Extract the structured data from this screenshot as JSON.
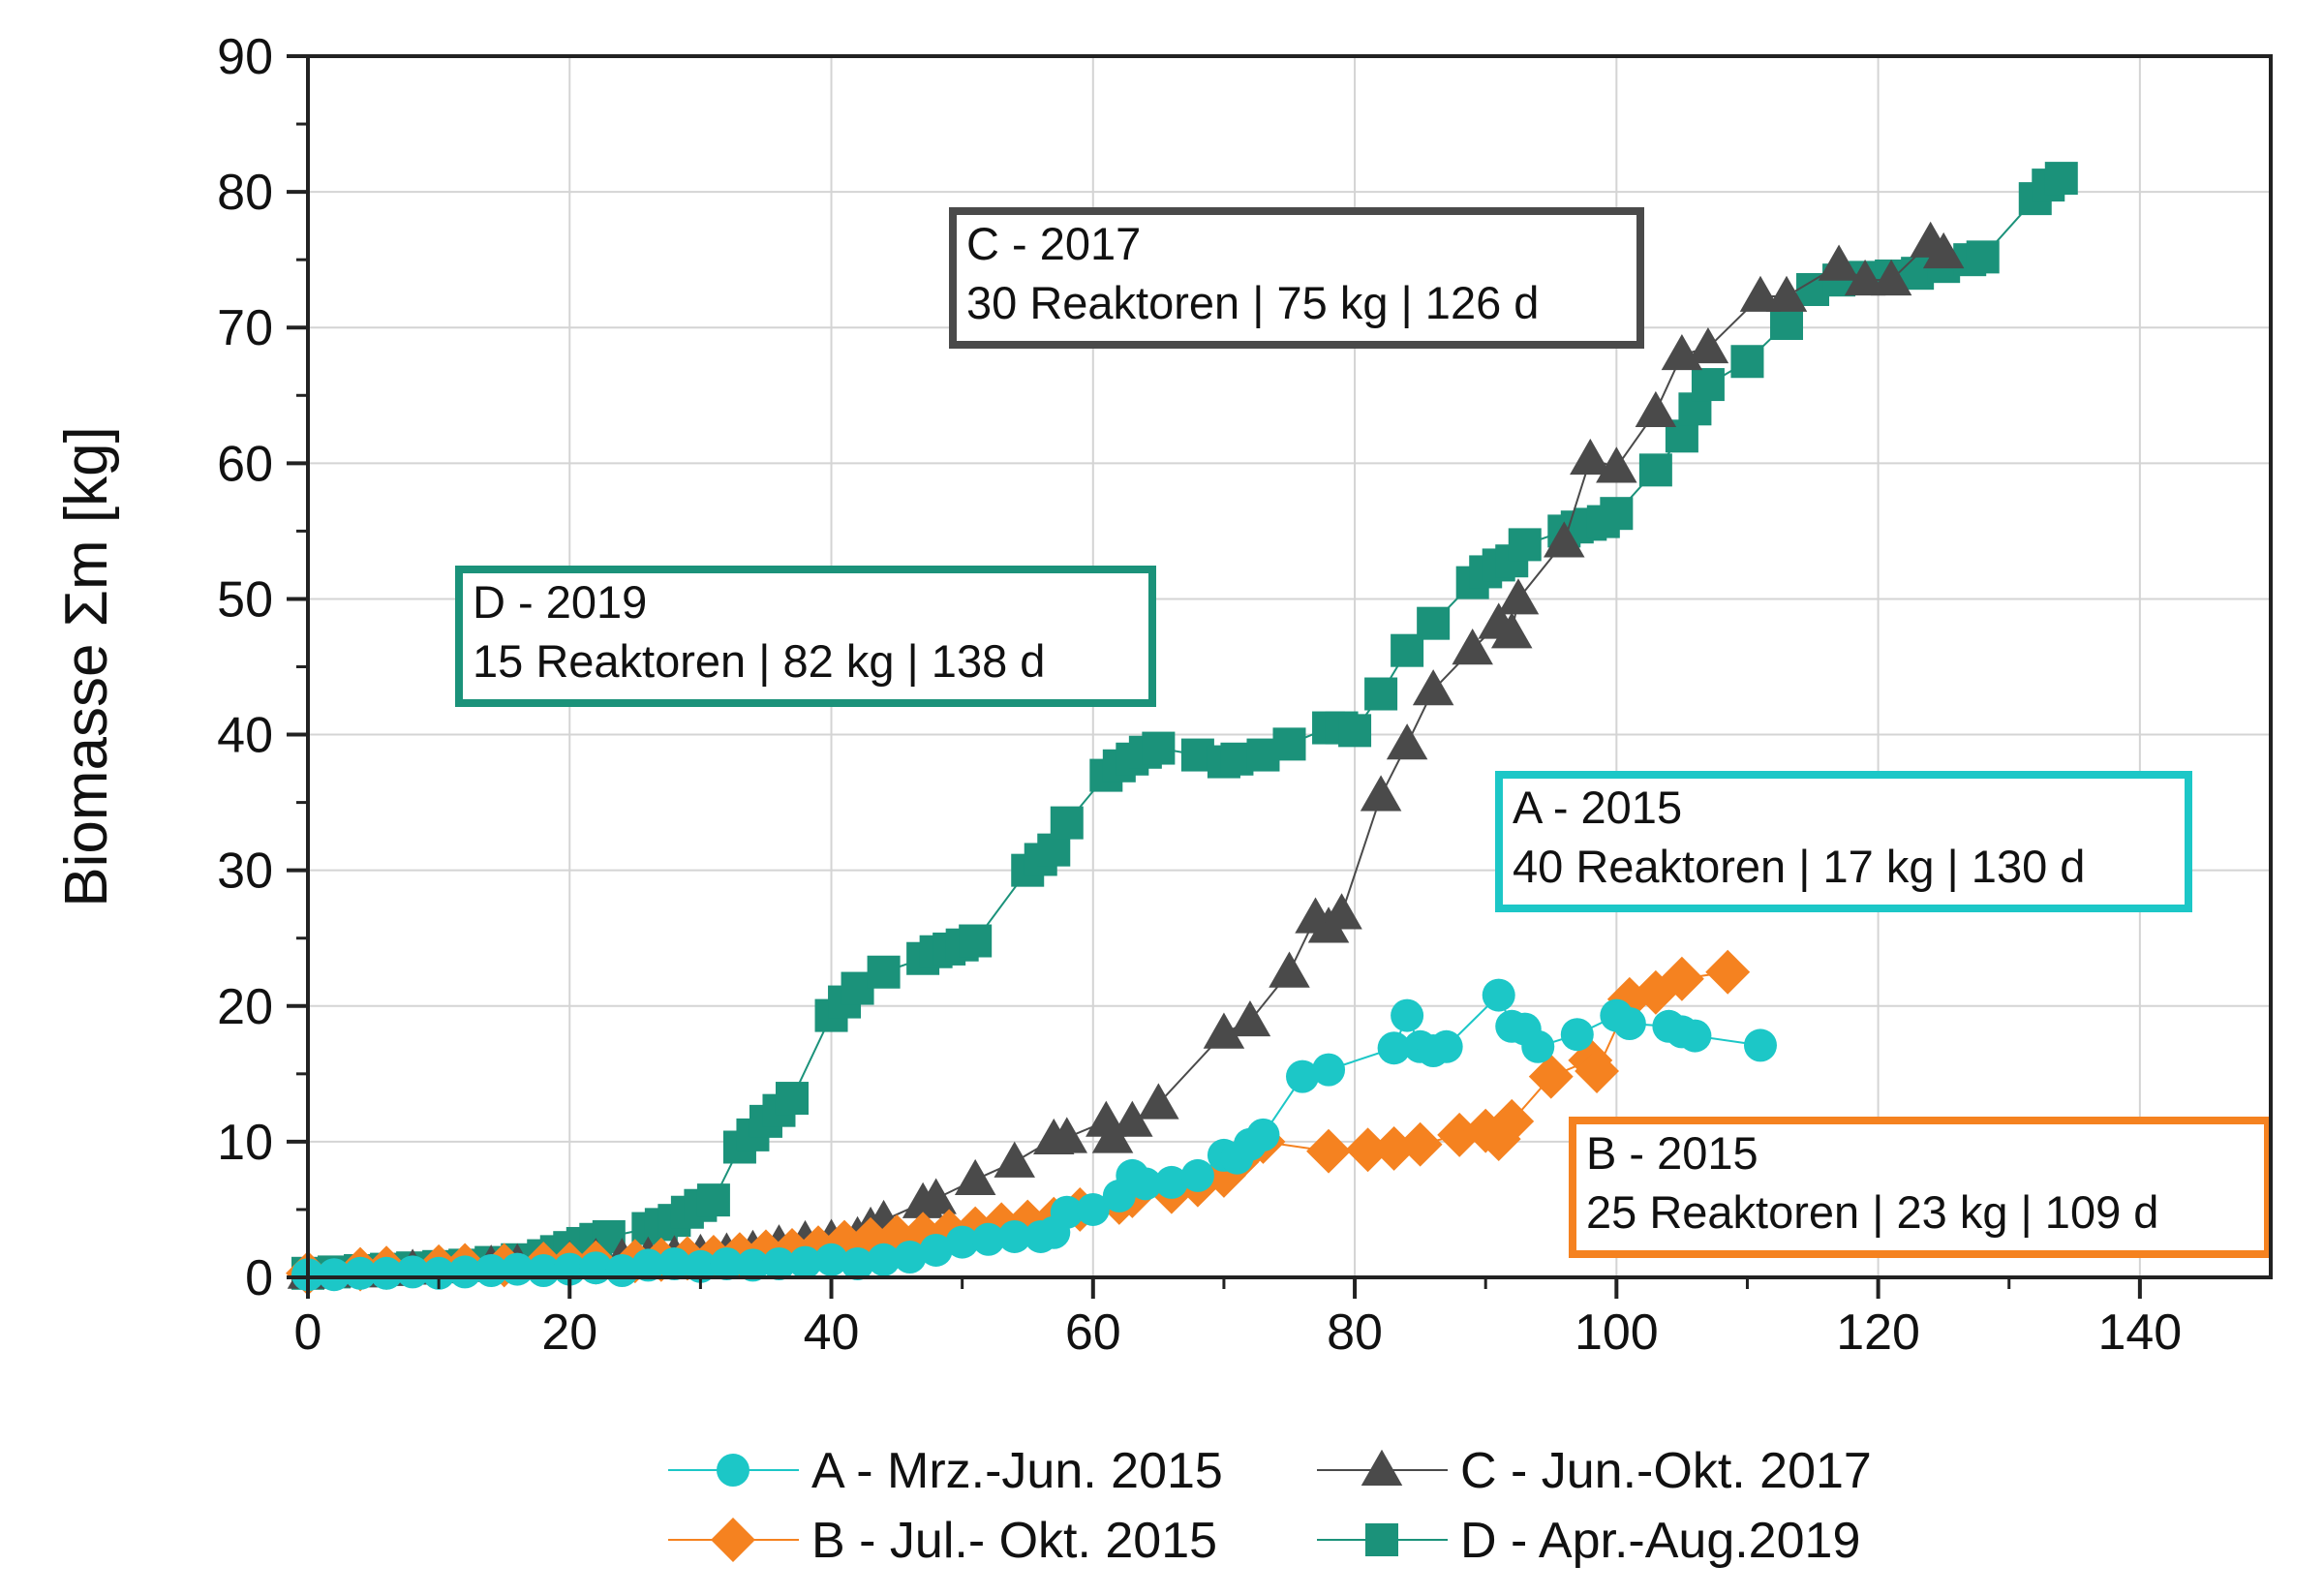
{
  "chart_data": {
    "type": "scatter",
    "xlabel": "",
    "ylabel": "Biomasse Σm [kg]",
    "xlim": [
      0,
      150
    ],
    "ylim": [
      0,
      90
    ],
    "x_ticks": [
      "0",
      "20",
      "40",
      "60",
      "80",
      "100",
      "120",
      "140"
    ],
    "y_ticks": [
      "0",
      "10",
      "20",
      "30",
      "40",
      "50",
      "60",
      "70",
      "80",
      "90"
    ],
    "grid": true,
    "legend_position": "bottom",
    "series": [
      {
        "name": "A - Mrz.-Jun. 2015",
        "color": "#1cc7c7",
        "marker": "circle",
        "points": [
          [
            0,
            0.2
          ],
          [
            2,
            0.2
          ],
          [
            4,
            0.3
          ],
          [
            6,
            0.3
          ],
          [
            8,
            0.4
          ],
          [
            10,
            0.3
          ],
          [
            12,
            0.4
          ],
          [
            14,
            0.5
          ],
          [
            16,
            0.6
          ],
          [
            18,
            0.5
          ],
          [
            20,
            0.6
          ],
          [
            22,
            0.7
          ],
          [
            24,
            0.5
          ],
          [
            26,
            0.9
          ],
          [
            28,
            1.0
          ],
          [
            30,
            0.8
          ],
          [
            32,
            1.0
          ],
          [
            34,
            0.9
          ],
          [
            36,
            1.0
          ],
          [
            38,
            1.1
          ],
          [
            40,
            1.3
          ],
          [
            42,
            1.0
          ],
          [
            44,
            1.3
          ],
          [
            46,
            1.5
          ],
          [
            48,
            2.0
          ],
          [
            50,
            2.6
          ],
          [
            52,
            2.8
          ],
          [
            54,
            3.0
          ],
          [
            56,
            3.0
          ],
          [
            57,
            3.3
          ],
          [
            58,
            4.8
          ],
          [
            60,
            5.0
          ],
          [
            62,
            6.0
          ],
          [
            63,
            7.5
          ],
          [
            64,
            6.9
          ],
          [
            66,
            7.0
          ],
          [
            68,
            7.5
          ],
          [
            70,
            9.0
          ],
          [
            71,
            8.8
          ],
          [
            72,
            9.8
          ],
          [
            73,
            10.5
          ],
          [
            76,
            14.8
          ],
          [
            78,
            15.3
          ],
          [
            83,
            16.9
          ],
          [
            84,
            19.3
          ],
          [
            85,
            17.0
          ],
          [
            86,
            16.7
          ],
          [
            87,
            17.0
          ],
          [
            91,
            20.8
          ],
          [
            92,
            18.5
          ],
          [
            93,
            18.3
          ],
          [
            94,
            17.0
          ],
          [
            97,
            17.9
          ],
          [
            100,
            19.3
          ],
          [
            101,
            18.7
          ],
          [
            104,
            18.5
          ],
          [
            105,
            18.1
          ],
          [
            106,
            17.8
          ],
          [
            111,
            17.1
          ]
        ]
      },
      {
        "name": "B - Jul.- Okt. 2015",
        "color": "#f58220",
        "marker": "diamond",
        "points": [
          [
            0,
            0.3
          ],
          [
            4,
            0.6
          ],
          [
            6,
            0.7
          ],
          [
            10,
            0.8
          ],
          [
            12,
            0.9
          ],
          [
            15,
            0.9
          ],
          [
            18,
            1.0
          ],
          [
            20,
            1.0
          ],
          [
            22,
            1.1
          ],
          [
            25,
            1.2
          ],
          [
            27,
            1.3
          ],
          [
            29,
            1.4
          ],
          [
            31,
            1.5
          ],
          [
            33,
            1.7
          ],
          [
            35,
            1.9
          ],
          [
            37,
            2.0
          ],
          [
            39,
            2.2
          ],
          [
            41,
            2.6
          ],
          [
            43,
            2.8
          ],
          [
            45,
            3.0
          ],
          [
            47,
            3.2
          ],
          [
            49,
            3.4
          ],
          [
            51,
            3.6
          ],
          [
            53,
            3.9
          ],
          [
            55,
            4.1
          ],
          [
            57,
            4.3
          ],
          [
            59,
            5.0
          ],
          [
            62,
            5.5
          ],
          [
            63,
            6.0
          ],
          [
            66,
            6.3
          ],
          [
            68,
            6.8
          ],
          [
            70,
            7.5
          ],
          [
            71,
            8.5
          ],
          [
            72,
            9.5
          ],
          [
            73,
            10.0
          ],
          [
            78,
            9.3
          ],
          [
            81,
            9.4
          ],
          [
            83,
            9.5
          ],
          [
            85,
            9.8
          ],
          [
            88,
            10.5
          ],
          [
            90,
            10.8
          ],
          [
            91,
            10.2
          ],
          [
            92,
            11.5
          ],
          [
            95,
            14.8
          ],
          [
            98,
            16.0
          ],
          [
            98.5,
            15.2
          ],
          [
            101,
            20.5
          ],
          [
            103,
            21.0
          ],
          [
            105,
            22.0
          ],
          [
            108.5,
            22.5
          ]
        ]
      },
      {
        "name": "C - Jun.-Okt. 2017",
        "color": "#4a4a4a",
        "marker": "triangle",
        "points": [
          [
            0,
            0.3
          ],
          [
            4,
            0.4
          ],
          [
            6,
            0.5
          ],
          [
            8,
            0.6
          ],
          [
            10,
            0.7
          ],
          [
            12,
            0.8
          ],
          [
            14,
            0.9
          ],
          [
            16,
            1.0
          ],
          [
            18,
            1.1
          ],
          [
            20,
            1.2
          ],
          [
            22,
            1.4
          ],
          [
            24,
            1.4
          ],
          [
            26,
            1.5
          ],
          [
            28,
            1.6
          ],
          [
            30,
            1.7
          ],
          [
            32,
            1.8
          ],
          [
            34,
            2.0
          ],
          [
            36,
            2.4
          ],
          [
            38,
            2.7
          ],
          [
            40,
            2.8
          ],
          [
            42,
            3.0
          ],
          [
            43,
            3.7
          ],
          [
            44,
            4.2
          ],
          [
            47,
            5.5
          ],
          [
            48,
            5.8
          ],
          [
            51,
            7.2
          ],
          [
            54,
            8.5
          ],
          [
            57,
            10.2
          ],
          [
            58,
            10.3
          ],
          [
            61,
            11.5
          ],
          [
            61.5,
            10.3
          ],
          [
            63,
            11.5
          ],
          [
            65,
            12.8
          ],
          [
            70,
            18.0
          ],
          [
            72,
            18.9
          ],
          [
            75,
            22.5
          ],
          [
            77,
            26.5
          ],
          [
            78,
            25.8
          ],
          [
            79,
            26.8
          ],
          [
            82,
            35.5
          ],
          [
            84,
            39.3
          ],
          [
            86,
            43.3
          ],
          [
            89,
            46.3
          ],
          [
            91,
            48.2
          ],
          [
            92,
            47.5
          ],
          [
            92.5,
            50.0
          ],
          [
            96,
            54.2
          ],
          [
            98,
            60.3
          ],
          [
            100,
            59.7
          ],
          [
            103,
            63.8
          ],
          [
            105,
            68.0
          ],
          [
            107,
            68.5
          ],
          [
            111,
            72.3
          ],
          [
            113,
            72.3
          ],
          [
            117,
            74.6
          ],
          [
            119,
            73.5
          ],
          [
            121,
            73.5
          ],
          [
            124,
            76.3
          ],
          [
            125,
            75.5
          ]
        ]
      },
      {
        "name": "D - Apr.-Aug.2019",
        "color": "#1b927a",
        "marker": "square",
        "points": [
          [
            0,
            0.3
          ],
          [
            2,
            0.4
          ],
          [
            4,
            0.5
          ],
          [
            6,
            0.6
          ],
          [
            8,
            0.7
          ],
          [
            10,
            0.8
          ],
          [
            12,
            0.9
          ],
          [
            14,
            1.1
          ],
          [
            16,
            1.3
          ],
          [
            18,
            1.6
          ],
          [
            19,
            1.9
          ],
          [
            20,
            2.2
          ],
          [
            21,
            2.5
          ],
          [
            22,
            2.8
          ],
          [
            23,
            3.0
          ],
          [
            26,
            3.6
          ],
          [
            27,
            3.9
          ],
          [
            28,
            4.2
          ],
          [
            29,
            4.8
          ],
          [
            30,
            5.3
          ],
          [
            31,
            5.7
          ],
          [
            33,
            9.6
          ],
          [
            34,
            10.5
          ],
          [
            35,
            11.5
          ],
          [
            36,
            12.3
          ],
          [
            37,
            13.2
          ],
          [
            40,
            19.3
          ],
          [
            41,
            20.3
          ],
          [
            42,
            21.3
          ],
          [
            44,
            22.5
          ],
          [
            47,
            23.5
          ],
          [
            48,
            24.0
          ],
          [
            49,
            24.2
          ],
          [
            50,
            24.5
          ],
          [
            51,
            24.8
          ],
          [
            55,
            30.0
          ],
          [
            56,
            30.8
          ],
          [
            57,
            31.5
          ],
          [
            58,
            33.5
          ],
          [
            61,
            37.0
          ],
          [
            62,
            37.7
          ],
          [
            63,
            38.2
          ],
          [
            64,
            38.7
          ],
          [
            65,
            39.0
          ],
          [
            68,
            38.5
          ],
          [
            70,
            38.0
          ],
          [
            71,
            38.2
          ],
          [
            73,
            38.5
          ],
          [
            75,
            39.3
          ],
          [
            78,
            40.5
          ],
          [
            79,
            40.5
          ],
          [
            80,
            40.3
          ],
          [
            82,
            43.0
          ],
          [
            84,
            46.2
          ],
          [
            86,
            48.2
          ],
          [
            89,
            51.2
          ],
          [
            90,
            52.0
          ],
          [
            91,
            52.5
          ],
          [
            92,
            52.8
          ],
          [
            93,
            54.0
          ],
          [
            96,
            55.0
          ],
          [
            97,
            55.3
          ],
          [
            98,
            55.5
          ],
          [
            99,
            55.7
          ],
          [
            100,
            56.3
          ],
          [
            103,
            59.5
          ],
          [
            105,
            62.0
          ],
          [
            106,
            64.0
          ],
          [
            107,
            65.8
          ],
          [
            110,
            67.5
          ],
          [
            113,
            70.3
          ],
          [
            115,
            72.8
          ],
          [
            117,
            73.5
          ],
          [
            119,
            73.7
          ],
          [
            121,
            73.8
          ],
          [
            123,
            74.0
          ],
          [
            125,
            74.5
          ],
          [
            127,
            75.0
          ],
          [
            128,
            75.2
          ],
          [
            132,
            79.5
          ],
          [
            133,
            80.5
          ],
          [
            134,
            81.0
          ]
        ]
      }
    ],
    "annotations": [
      {
        "label": "annotation-c",
        "line1": "C - 2017",
        "line2": "30 Reaktoren | 75 kg | 126 d",
        "color": "#4a4a4a"
      },
      {
        "label": "annotation-d",
        "line1": "D - 2019",
        "line2": "15 Reaktoren | 82 kg | 138 d",
        "color": "#1b927a"
      },
      {
        "label": "annotation-a",
        "line1": "A - 2015",
        "line2": "40 Reaktoren | 17 kg | 130 d",
        "color": "#1cc7c7"
      },
      {
        "label": "annotation-b",
        "line1": "B - 2015",
        "line2": "25 Reaktoren | 23 kg | 109 d",
        "color": "#f58220"
      }
    ]
  }
}
